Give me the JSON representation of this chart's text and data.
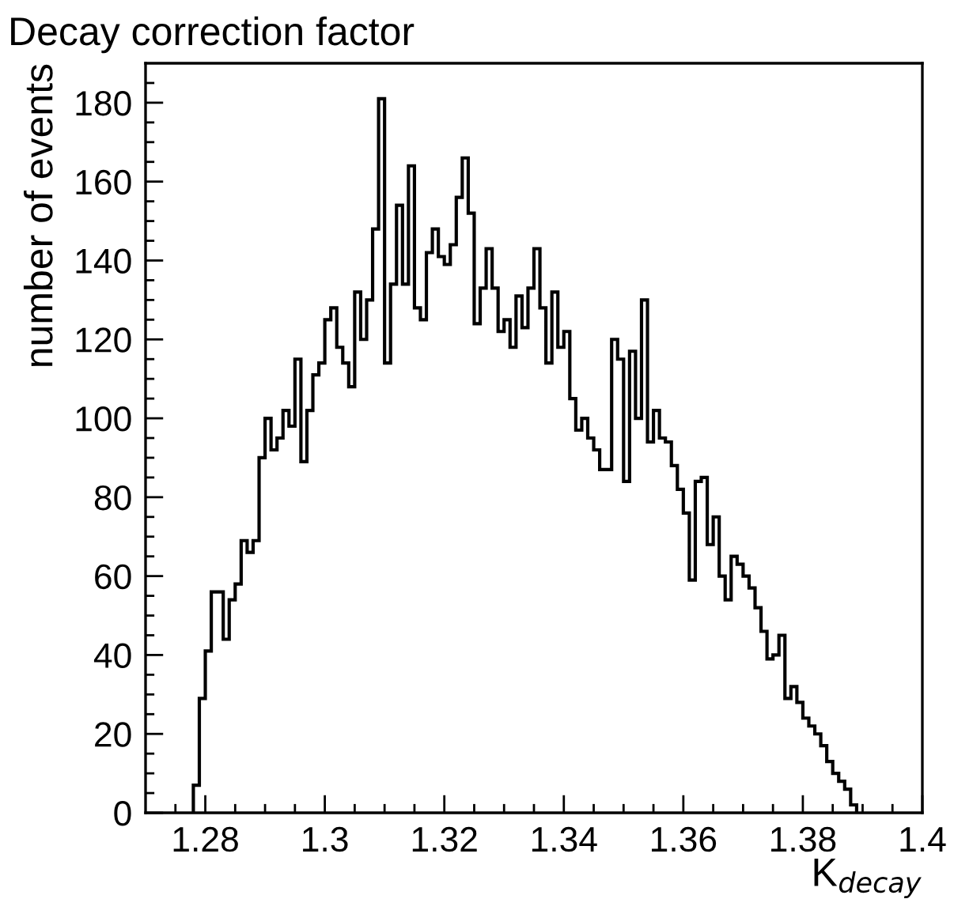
{
  "chart_data": {
    "type": "histogram",
    "title": "Decay correction factor",
    "xlabel": "K$_{decay}$",
    "ylabel": "number of events",
    "color": "#000000",
    "bins": [
      1.278,
      1.279,
      1.28,
      1.281,
      1.282,
      1.283,
      1.284,
      1.285,
      1.286,
      1.287,
      1.288,
      1.289,
      1.29,
      1.291,
      1.292,
      1.293,
      1.294,
      1.295,
      1.296,
      1.297,
      1.298,
      1.299,
      1.3,
      1.301,
      1.302,
      1.303,
      1.304,
      1.305,
      1.306,
      1.307,
      1.308,
      1.309,
      1.31,
      1.311,
      1.312,
      1.313,
      1.314,
      1.315,
      1.316,
      1.317,
      1.318,
      1.319,
      1.32,
      1.321,
      1.322,
      1.323,
      1.324,
      1.325,
      1.326,
      1.327,
      1.328,
      1.329,
      1.33,
      1.331,
      1.332,
      1.333,
      1.334,
      1.335,
      1.336,
      1.337,
      1.338,
      1.339,
      1.34,
      1.341,
      1.342,
      1.343,
      1.344,
      1.345,
      1.346,
      1.347,
      1.348,
      1.349,
      1.35,
      1.351,
      1.352,
      1.353,
      1.354,
      1.355,
      1.356,
      1.357,
      1.358,
      1.359,
      1.36,
      1.361,
      1.362,
      1.363,
      1.364,
      1.365,
      1.366,
      1.367,
      1.368,
      1.369,
      1.37,
      1.371,
      1.372,
      1.373,
      1.374,
      1.375,
      1.376,
      1.377,
      1.378,
      1.379,
      1.38,
      1.381,
      1.382,
      1.383,
      1.384,
      1.385,
      1.386,
      1.387,
      1.388,
      1.389
    ],
    "values": [
      7,
      29,
      41,
      56,
      56,
      44,
      54,
      58,
      69,
      66,
      69,
      90,
      100,
      92,
      95,
      102,
      98,
      115,
      89,
      102,
      111,
      114,
      125,
      128,
      118,
      114,
      108,
      132,
      120,
      130,
      148,
      181,
      114,
      134,
      154,
      134,
      164,
      128,
      125,
      142,
      148,
      141,
      139,
      144,
      156,
      166,
      152,
      124,
      133,
      143,
      133,
      122,
      125,
      118,
      131,
      123,
      133,
      143,
      128,
      114,
      132,
      118,
      122,
      105,
      97,
      100,
      95,
      92,
      87,
      87,
      120,
      115,
      84,
      117,
      100,
      130,
      94,
      102,
      95,
      94,
      88,
      82,
      76,
      59,
      84,
      85,
      68,
      75,
      60,
      54,
      65,
      63,
      60,
      57,
      52,
      46,
      39,
      40,
      45,
      29,
      32,
      28,
      24,
      22,
      20,
      17,
      13,
      10,
      8,
      6,
      2
    ],
    "xlim": [
      1.27,
      1.4
    ],
    "ylim": [
      0,
      190
    ],
    "xticks": [
      {
        "value": 1.275,
        "label": null
      },
      1.28,
      {
        "value": 1.285,
        "label": null
      },
      {
        "value": 1.29,
        "label": null
      },
      {
        "value": 1.295,
        "label": null
      },
      1.3,
      {
        "value": 1.305,
        "label": null
      },
      {
        "value": 1.31,
        "label": null
      },
      {
        "value": 1.315,
        "label": null
      },
      1.32,
      {
        "value": 1.325,
        "label": null
      },
      {
        "value": 1.33,
        "label": null
      },
      {
        "value": 1.335,
        "label": null
      },
      1.34,
      {
        "value": 1.345,
        "label": null
      },
      {
        "value": 1.35,
        "label": null
      },
      {
        "value": 1.355,
        "label": null
      },
      1.36,
      {
        "value": 1.365,
        "label": null
      },
      {
        "value": 1.37,
        "label": null
      },
      {
        "value": 1.375,
        "label": null
      },
      1.38,
      {
        "value": 1.385,
        "label": null
      },
      {
        "value": 1.39,
        "label": null
      },
      {
        "value": 1.395,
        "label": null
      },
      1.4
    ],
    "yticks": [
      0,
      {
        "value": 5,
        "label": null
      },
      {
        "value": 10,
        "label": null
      },
      {
        "value": 15,
        "label": null
      },
      20,
      {
        "value": 25,
        "label": null
      },
      {
        "value": 30,
        "label": null
      },
      {
        "value": 35,
        "label": null
      },
      40,
      {
        "value": 45,
        "label": null
      },
      {
        "value": 50,
        "label": null
      },
      {
        "value": 55,
        "label": null
      },
      60,
      {
        "value": 65,
        "label": null
      },
      {
        "value": 70,
        "label": null
      },
      {
        "value": 75,
        "label": null
      },
      80,
      {
        "value": 85,
        "label": null
      },
      {
        "value": 90,
        "label": null
      },
      {
        "value": 95,
        "label": null
      },
      100,
      {
        "value": 105,
        "label": null
      },
      {
        "value": 110,
        "label": null
      },
      {
        "value": 115,
        "label": null
      },
      120,
      {
        "value": 125,
        "label": null
      },
      {
        "value": 130,
        "label": null
      },
      {
        "value": 135,
        "label": null
      },
      140,
      {
        "value": 145,
        "label": null
      },
      {
        "value": 150,
        "label": null
      },
      {
        "value": 155,
        "label": null
      },
      160,
      {
        "value": 165,
        "label": null
      },
      {
        "value": 170,
        "label": null
      },
      {
        "value": 175,
        "label": null
      },
      180,
      {
        "value": 185,
        "label": null
      }
    ],
    "grid": false
  }
}
